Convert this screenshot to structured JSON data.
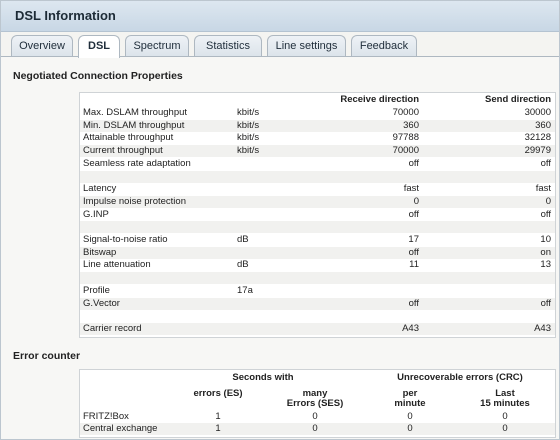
{
  "window": {
    "title": "DSL Information"
  },
  "tabs": [
    "Overview",
    "DSL",
    "Spectrum",
    "Statistics",
    "Line settings",
    "Feedback"
  ],
  "sections": {
    "negotiated": "Negotiated Connection Properties",
    "error": "Error counter"
  },
  "table": {
    "headers": {
      "receive": "Receive direction",
      "send": "Send direction"
    },
    "rows": [
      {
        "label": "Max. DSLAM throughput",
        "unit": "kbit/s",
        "rx": "70000",
        "tx": "30000"
      },
      {
        "label": "Min. DSLAM throughput",
        "unit": "kbit/s",
        "rx": "360",
        "tx": "360"
      },
      {
        "label": "Attainable throughput",
        "unit": "kbit/s",
        "rx": "97788",
        "tx": "32128"
      },
      {
        "label": "Current throughput",
        "unit": "kbit/s",
        "rx": "70000",
        "tx": "29979"
      },
      {
        "label": "Seamless rate adaptation",
        "unit": "",
        "rx": "off",
        "tx": "off"
      },
      {
        "label": "",
        "unit": "",
        "rx": "",
        "tx": ""
      },
      {
        "label": "Latency",
        "unit": "",
        "rx": "fast",
        "tx": "fast"
      },
      {
        "label": "Impulse noise protection",
        "unit": "",
        "rx": "0",
        "tx": "0"
      },
      {
        "label": "G.INP",
        "unit": "",
        "rx": "off",
        "tx": "off"
      },
      {
        "label": "",
        "unit": "",
        "rx": "",
        "tx": ""
      },
      {
        "label": "Signal-to-noise ratio",
        "unit": "dB",
        "rx": "17",
        "tx": "10"
      },
      {
        "label": "Bitswap",
        "unit": "",
        "rx": "off",
        "tx": "on"
      },
      {
        "label": "Line attenuation",
        "unit": "dB",
        "rx": "11",
        "tx": "13"
      },
      {
        "label": "",
        "unit": "",
        "rx": "",
        "tx": ""
      },
      {
        "label": "Profile",
        "unit": "17a",
        "rx": "",
        "tx": ""
      },
      {
        "label": "G.Vector",
        "unit": "",
        "rx": "off",
        "tx": "off"
      },
      {
        "label": "",
        "unit": "",
        "rx": "",
        "tx": ""
      },
      {
        "label": "Carrier record",
        "unit": "",
        "rx": "A43",
        "tx": "A43"
      }
    ]
  },
  "errors": {
    "group_seconds": "Seconds with",
    "group_crc": "Unrecoverable errors (CRC)",
    "col_es": "errors (ES)",
    "col_ses_1": "many",
    "col_ses_2": "Errors (SES)",
    "col_per_1": "per",
    "col_per_2": "minute",
    "col_last_1": "Last",
    "col_last_2": "15 minutes",
    "rows": [
      {
        "label": "FRITZ!Box",
        "es": "1",
        "ses": "0",
        "per": "0",
        "last": "0"
      },
      {
        "label": "Central exchange",
        "es": "1",
        "ses": "0",
        "per": "0",
        "last": "0"
      }
    ]
  }
}
